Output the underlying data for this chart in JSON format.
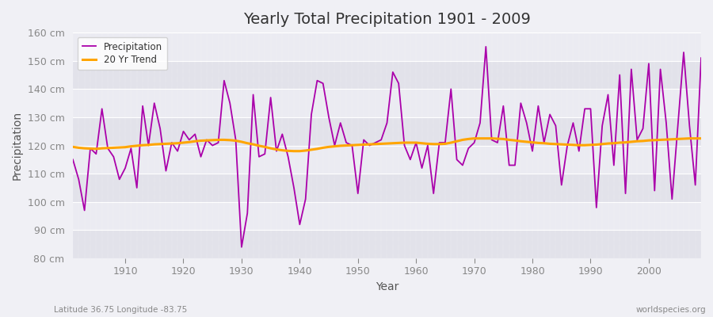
{
  "title": "Yearly Total Precipitation 1901 - 2009",
  "xlabel": "Year",
  "ylabel": "Precipitation",
  "subtitle_left": "Latitude 36.75 Longitude -83.75",
  "subtitle_right": "worldspecies.org",
  "ylim": [
    80,
    160
  ],
  "yticks": [
    80,
    90,
    100,
    110,
    120,
    130,
    140,
    150,
    160
  ],
  "xlim": [
    1901,
    2009
  ],
  "xticks": [
    1910,
    1920,
    1930,
    1940,
    1950,
    1960,
    1970,
    1980,
    1990,
    2000
  ],
  "precip_color": "#AA00AA",
  "trend_color": "#FFA500",
  "background_color": "#F0F0F5",
  "band_color_dark": "#E2E2EA",
  "band_color_light": "#EBEBF2",
  "grid_color": "#FFFFFF",
  "years": [
    1901,
    1902,
    1903,
    1904,
    1905,
    1906,
    1907,
    1908,
    1909,
    1910,
    1911,
    1912,
    1913,
    1914,
    1915,
    1916,
    1917,
    1918,
    1919,
    1920,
    1921,
    1922,
    1923,
    1924,
    1925,
    1926,
    1927,
    1928,
    1929,
    1930,
    1931,
    1932,
    1933,
    1934,
    1935,
    1936,
    1937,
    1938,
    1939,
    1940,
    1941,
    1942,
    1943,
    1944,
    1945,
    1946,
    1947,
    1948,
    1949,
    1950,
    1951,
    1952,
    1953,
    1954,
    1955,
    1956,
    1957,
    1958,
    1959,
    1960,
    1961,
    1962,
    1963,
    1964,
    1965,
    1966,
    1967,
    1968,
    1969,
    1970,
    1971,
    1972,
    1973,
    1974,
    1975,
    1976,
    1977,
    1978,
    1979,
    1980,
    1981,
    1982,
    1983,
    1984,
    1985,
    1986,
    1987,
    1988,
    1989,
    1990,
    1991,
    1992,
    1993,
    1994,
    1995,
    1996,
    1997,
    1998,
    1999,
    2000,
    2001,
    2002,
    2003,
    2004,
    2005,
    2006,
    2007,
    2008,
    2009
  ],
  "precipitation": [
    115,
    108,
    97,
    119,
    117,
    133,
    119,
    116,
    108,
    112,
    119,
    105,
    134,
    120,
    135,
    126,
    111,
    121,
    118,
    125,
    122,
    124,
    116,
    122,
    120,
    121,
    143,
    135,
    122,
    84,
    96,
    138,
    116,
    117,
    137,
    118,
    124,
    116,
    105,
    92,
    101,
    131,
    143,
    142,
    130,
    120,
    128,
    121,
    120,
    103,
    122,
    120,
    121,
    122,
    128,
    146,
    142,
    120,
    115,
    121,
    112,
    120,
    103,
    121,
    121,
    140,
    115,
    113,
    119,
    121,
    128,
    155,
    122,
    121,
    134,
    113,
    113,
    135,
    128,
    118,
    134,
    121,
    131,
    127,
    106,
    120,
    128,
    118,
    133,
    133,
    98,
    127,
    138,
    113,
    145,
    103,
    147,
    122,
    126,
    149,
    104,
    147,
    128,
    101,
    127,
    153,
    127,
    106,
    151
  ],
  "trend": [
    119.5,
    119.2,
    119.0,
    118.9,
    118.8,
    119.0,
    119.1,
    119.2,
    119.3,
    119.4,
    119.7,
    119.9,
    120.1,
    120.2,
    120.4,
    120.5,
    120.6,
    120.7,
    120.8,
    121.0,
    121.2,
    121.5,
    121.7,
    121.8,
    121.9,
    122.0,
    122.0,
    121.9,
    121.7,
    121.3,
    120.8,
    120.4,
    119.9,
    119.5,
    119.0,
    118.6,
    118.3,
    118.1,
    118.0,
    118.0,
    118.2,
    118.5,
    118.8,
    119.2,
    119.5,
    119.7,
    119.9,
    120.0,
    120.1,
    120.2,
    120.3,
    120.4,
    120.5,
    120.6,
    120.7,
    120.8,
    120.9,
    121.0,
    121.0,
    121.0,
    120.8,
    120.6,
    120.5,
    120.5,
    120.6,
    121.0,
    121.5,
    122.0,
    122.3,
    122.5,
    122.5,
    122.5,
    122.5,
    122.4,
    122.3,
    122.0,
    121.8,
    121.5,
    121.3,
    121.1,
    120.9,
    120.8,
    120.6,
    120.5,
    120.4,
    120.3,
    120.2,
    120.1,
    120.1,
    120.2,
    120.3,
    120.5,
    120.7,
    120.8,
    121.0,
    121.1,
    121.3,
    121.5,
    121.6,
    121.8,
    121.9,
    122.0,
    122.1,
    122.2,
    122.3,
    122.4,
    122.5,
    122.5,
    122.5
  ]
}
